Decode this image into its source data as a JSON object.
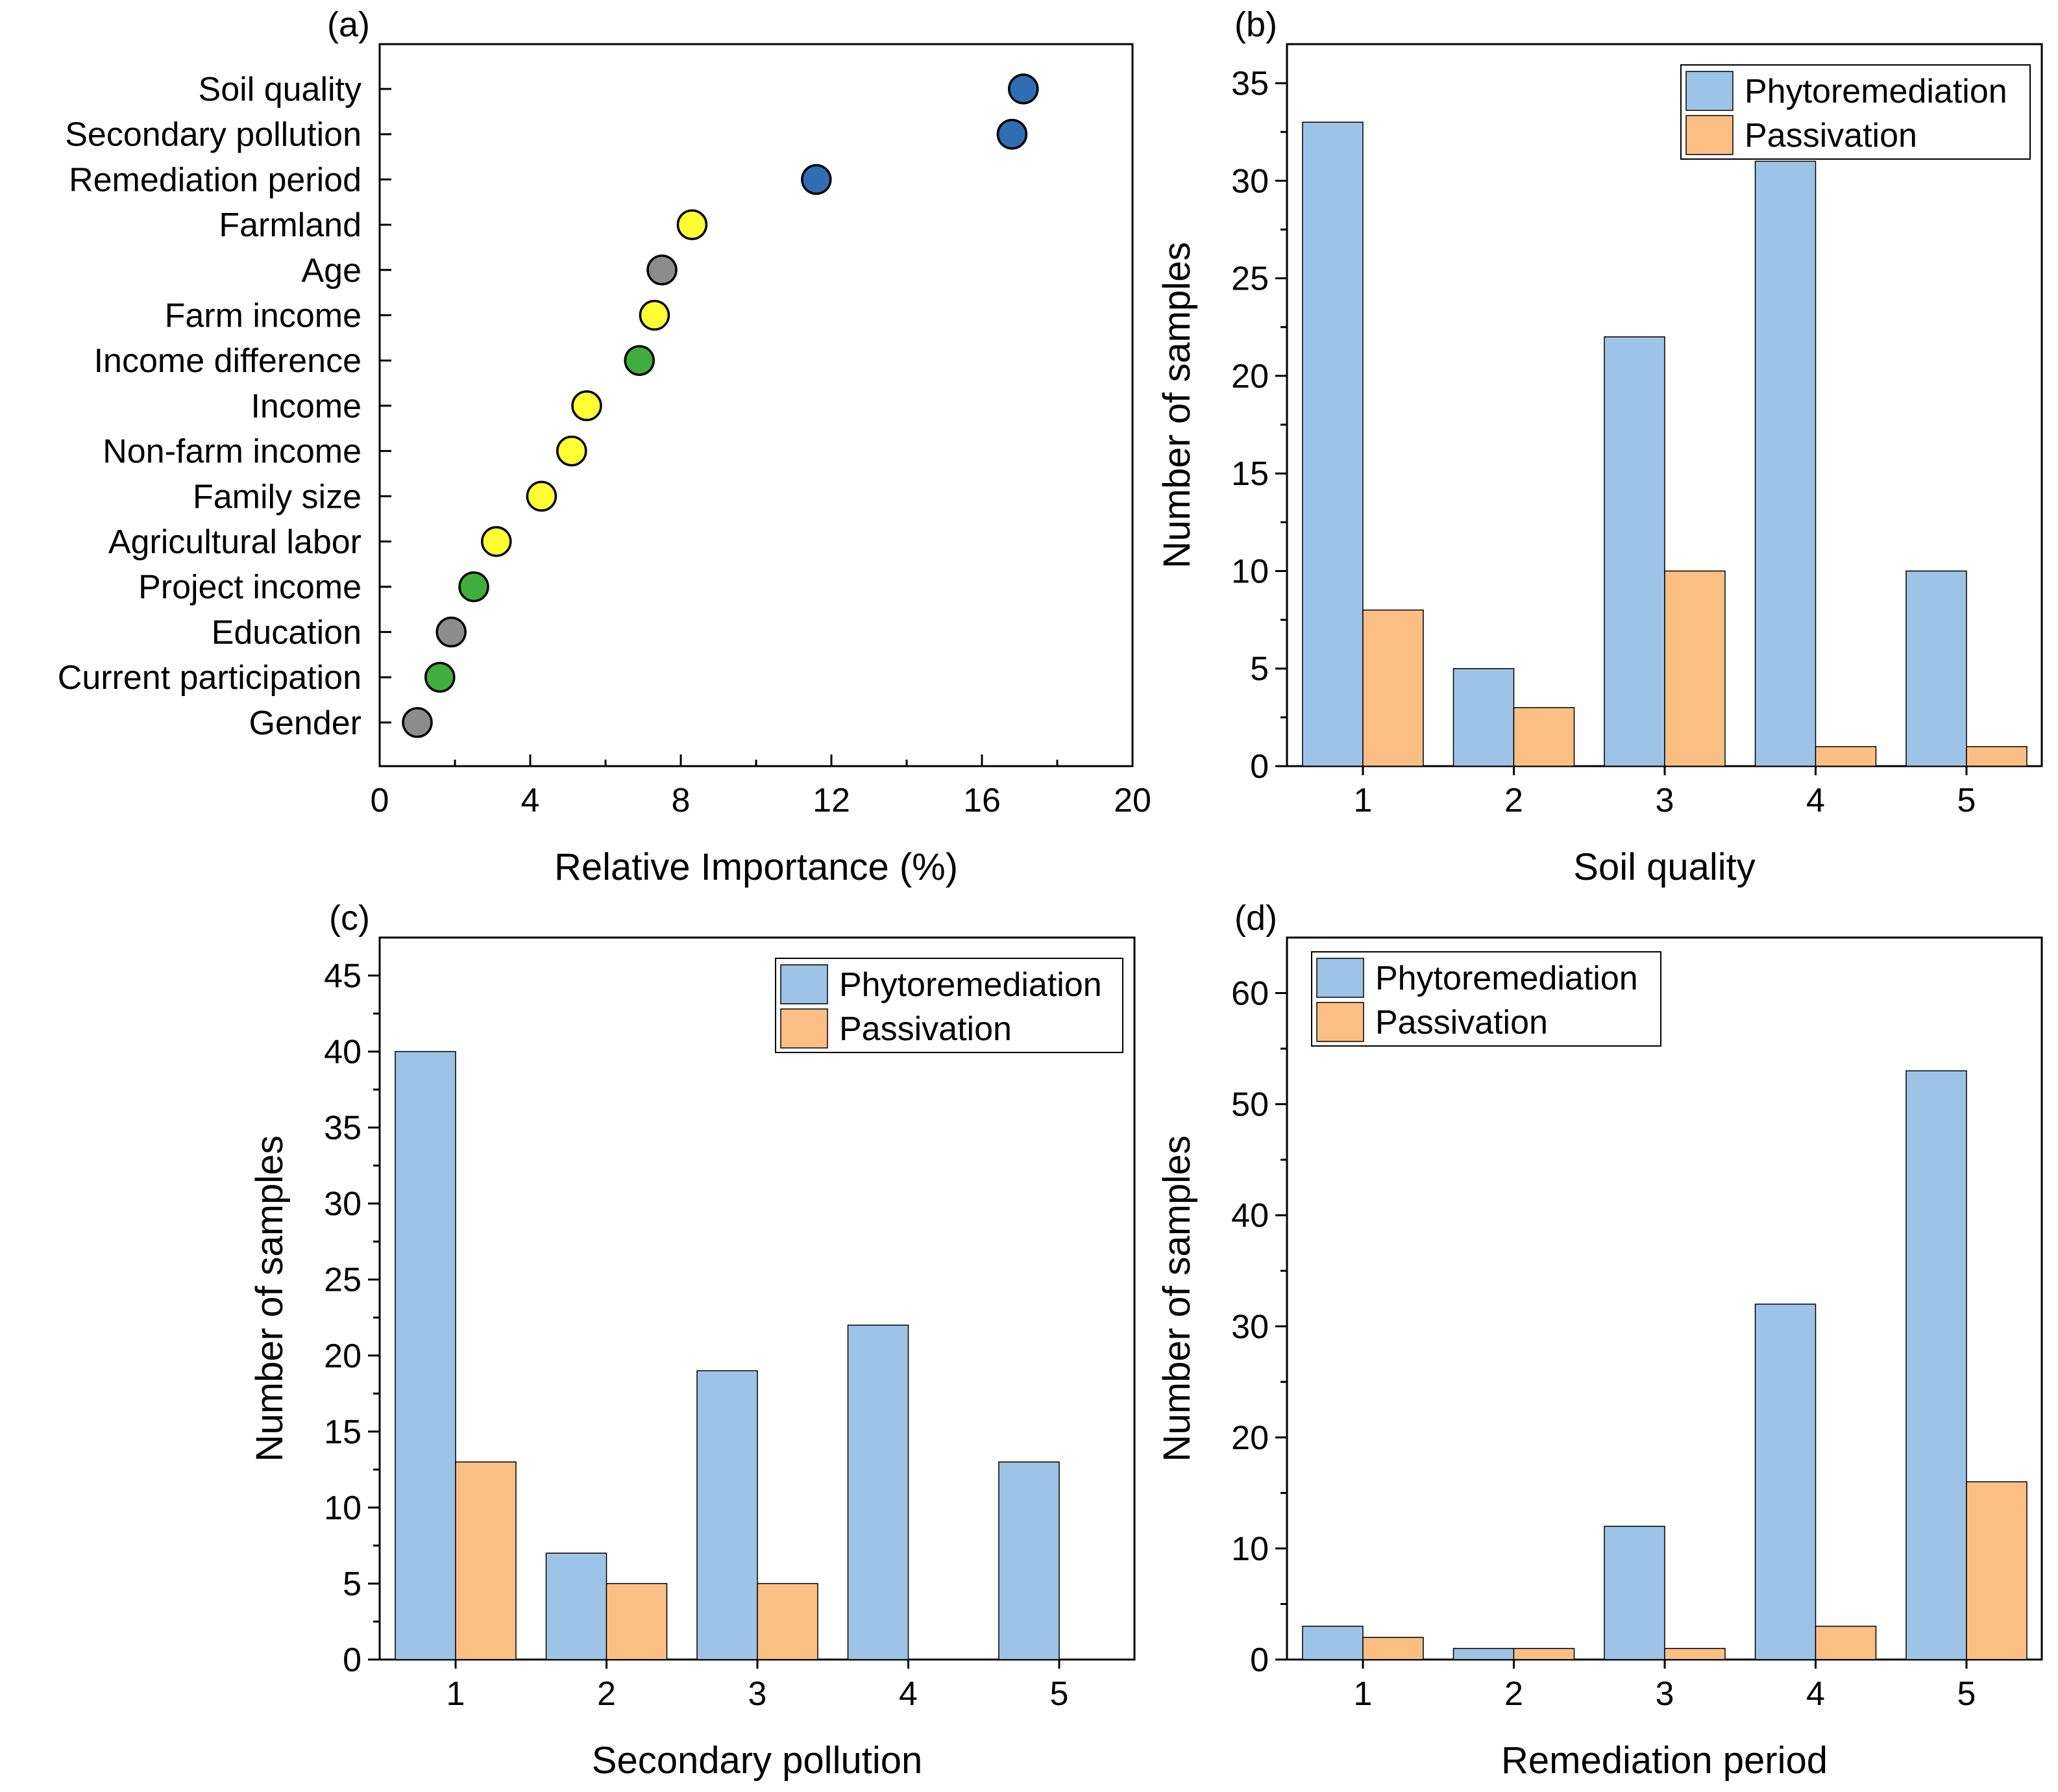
{
  "chart_data": [
    {
      "id": "a",
      "type": "scatter",
      "panel_label": "(a)",
      "title": "",
      "xlabel": "Relative Importance (%)",
      "ylabel": "",
      "xlim": [
        0,
        20
      ],
      "xticks": [
        0,
        4,
        8,
        12,
        16,
        20
      ],
      "grid": false,
      "points": [
        {
          "label": "Soil quality",
          "value": 17.1,
          "color": "#2f6db5"
        },
        {
          "label": "Secondary pollution",
          "value": 16.8,
          "color": "#2f6db5"
        },
        {
          "label": "Remediation period",
          "value": 11.6,
          "color": "#2f6db5"
        },
        {
          "label": "Farmland",
          "value": 8.3,
          "color": "#ffff33"
        },
        {
          "label": "Age",
          "value": 7.5,
          "color": "#8c8c8c"
        },
        {
          "label": "Farm income",
          "value": 7.3,
          "color": "#ffff33"
        },
        {
          "label": "Income difference",
          "value": 6.9,
          "color": "#3fae3f"
        },
        {
          "label": "Income",
          "value": 5.5,
          "color": "#ffff33"
        },
        {
          "label": "Non-farm income",
          "value": 5.1,
          "color": "#ffff33"
        },
        {
          "label": "Family size",
          "value": 4.3,
          "color": "#ffff33"
        },
        {
          "label": "Agricultural labor",
          "value": 3.1,
          "color": "#ffff33"
        },
        {
          "label": "Project income",
          "value": 2.5,
          "color": "#3fae3f"
        },
        {
          "label": "Education",
          "value": 1.9,
          "color": "#8c8c8c"
        },
        {
          "label": "Current participation",
          "value": 1.6,
          "color": "#3fae3f"
        },
        {
          "label": "Gender",
          "value": 1.0,
          "color": "#8c8c8c"
        }
      ]
    },
    {
      "id": "b",
      "type": "bar",
      "panel_label": "(b)",
      "title": "",
      "xlabel": "Soil quality",
      "ylabel": "Number of samples",
      "categories": [
        "1",
        "2",
        "3",
        "4",
        "5"
      ],
      "ylim": [
        0,
        37
      ],
      "yticks": [
        0,
        5,
        10,
        15,
        20,
        25,
        30,
        35
      ],
      "grid": false,
      "legend_position": "top-right",
      "series": [
        {
          "name": "Phytoremediation",
          "color": "#9dc3e6",
          "values": [
            33,
            5,
            22,
            31,
            10
          ]
        },
        {
          "name": "Passivation",
          "color": "#fbbf84",
          "values": [
            8,
            3,
            10,
            1,
            1
          ]
        }
      ]
    },
    {
      "id": "c",
      "type": "bar",
      "panel_label": "(c)",
      "title": "",
      "xlabel": "Secondary pollution",
      "ylabel": "Number of samples",
      "categories": [
        "1",
        "2",
        "3",
        "4",
        "5"
      ],
      "ylim": [
        0,
        47.5
      ],
      "yticks": [
        0,
        5,
        10,
        15,
        20,
        25,
        30,
        35,
        40,
        45
      ],
      "grid": false,
      "legend_position": "top-right",
      "series": [
        {
          "name": "Phytoremediation",
          "color": "#9dc3e6",
          "values": [
            40,
            7,
            19,
            22,
            13
          ]
        },
        {
          "name": "Passivation",
          "color": "#fbbf84",
          "values": [
            13,
            5,
            5,
            0,
            0
          ]
        }
      ]
    },
    {
      "id": "d",
      "type": "bar",
      "panel_label": "(d)",
      "title": "",
      "xlabel": "Remediation period",
      "ylabel": "Number of samples",
      "categories": [
        "1",
        "2",
        "3",
        "4",
        "5"
      ],
      "ylim": [
        0,
        65
      ],
      "yticks": [
        0,
        10,
        20,
        30,
        40,
        50,
        60
      ],
      "grid": false,
      "legend_position": "top-left",
      "series": [
        {
          "name": "Phytoremediation",
          "color": "#9dc3e6",
          "values": [
            3,
            1,
            12,
            32,
            53
          ]
        },
        {
          "name": "Passivation",
          "color": "#fbbf84",
          "values": [
            2,
            1,
            1,
            3,
            16
          ]
        }
      ]
    }
  ]
}
